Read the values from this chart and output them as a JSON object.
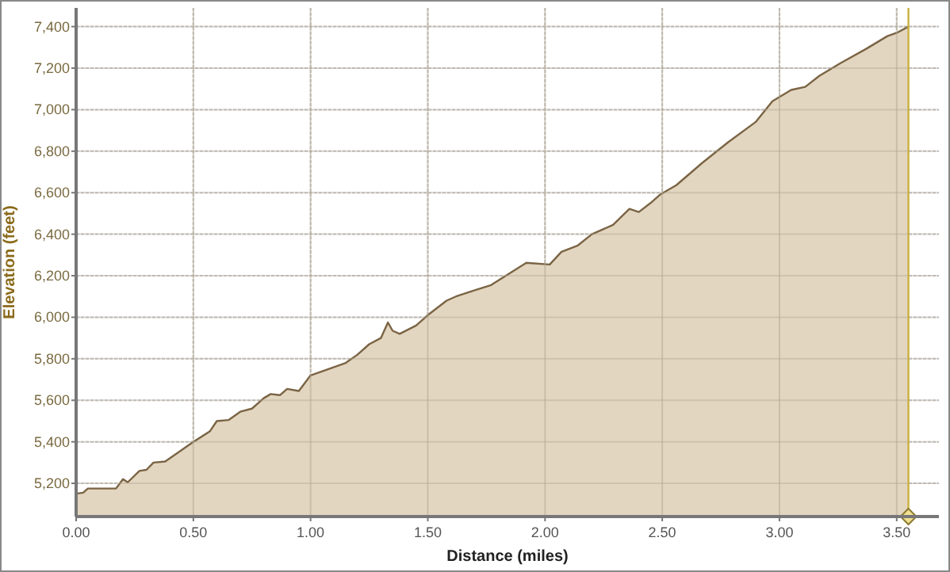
{
  "chart_data": {
    "type": "area",
    "xlabel": "Distance (miles)",
    "ylabel": "Elevation (feet)",
    "x": [
      0,
      0.03,
      0.05,
      0.17,
      0.2,
      0.22,
      0.27,
      0.3,
      0.33,
      0.38,
      0.5,
      0.57,
      0.6,
      0.65,
      0.7,
      0.75,
      0.8,
      0.83,
      0.87,
      0.9,
      0.95,
      1.0,
      1.05,
      1.15,
      1.2,
      1.25,
      1.3,
      1.33,
      1.35,
      1.38,
      1.45,
      1.5,
      1.58,
      1.62,
      1.7,
      1.77,
      1.92,
      2.02,
      2.07,
      2.14,
      2.2,
      2.29,
      2.36,
      2.4,
      2.45,
      2.49,
      2.56,
      2.67,
      2.78,
      2.9,
      2.97,
      3.05,
      3.11,
      3.17,
      3.26,
      3.37,
      3.46,
      3.5,
      3.55
    ],
    "series": [
      {
        "color": "#7a6444",
        "values": [
          5150,
          5155,
          5175,
          5175,
          5220,
          5205,
          5260,
          5265,
          5300,
          5305,
          5400,
          5450,
          5500,
          5505,
          5545,
          5560,
          5610,
          5630,
          5625,
          5655,
          5645,
          5720,
          5740,
          5780,
          5820,
          5870,
          5900,
          5975,
          5935,
          5920,
          5960,
          6010,
          6080,
          6100,
          6130,
          6155,
          6262,
          6254,
          6315,
          6346,
          6400,
          6445,
          6522,
          6507,
          6550,
          6590,
          6636,
          6743,
          6842,
          6942,
          7041,
          7095,
          7110,
          7163,
          7224,
          7293,
          7354,
          7370,
          7400
        ]
      }
    ],
    "xlim": [
      0,
      3.68
    ],
    "xticks": [
      {
        "value": 0,
        "label": "0.00"
      },
      {
        "value": 0.5,
        "label": "0.50"
      },
      {
        "value": 1,
        "label": "1.00"
      },
      {
        "value": 1.5,
        "label": "1.50"
      },
      {
        "value": 2,
        "label": "2.00"
      },
      {
        "value": 2.5,
        "label": "2.50"
      },
      {
        "value": 3,
        "label": "3.00"
      },
      {
        "value": 3.5,
        "label": "3.50"
      }
    ],
    "ylim": [
      5040,
      7490
    ],
    "yticks": [
      {
        "value": 5200,
        "label": "5,200"
      },
      {
        "value": 5400,
        "label": "5,400"
      },
      {
        "value": 5600,
        "label": "5,600"
      },
      {
        "value": 5800,
        "label": "5,800"
      },
      {
        "value": 6000,
        "label": "6,000"
      },
      {
        "value": 6200,
        "label": "6,200"
      },
      {
        "value": 6400,
        "label": "6,400"
      },
      {
        "value": 6600,
        "label": "6,600"
      },
      {
        "value": 6800,
        "label": "6,800"
      },
      {
        "value": 7000,
        "label": "7,000"
      },
      {
        "value": 7200,
        "label": "7,200"
      },
      {
        "value": 7400,
        "label": "7,400"
      }
    ],
    "grid": true,
    "ref_lines": [
      {
        "axis": "x",
        "value": 3.55,
        "color": "#c8b040"
      }
    ]
  }
}
